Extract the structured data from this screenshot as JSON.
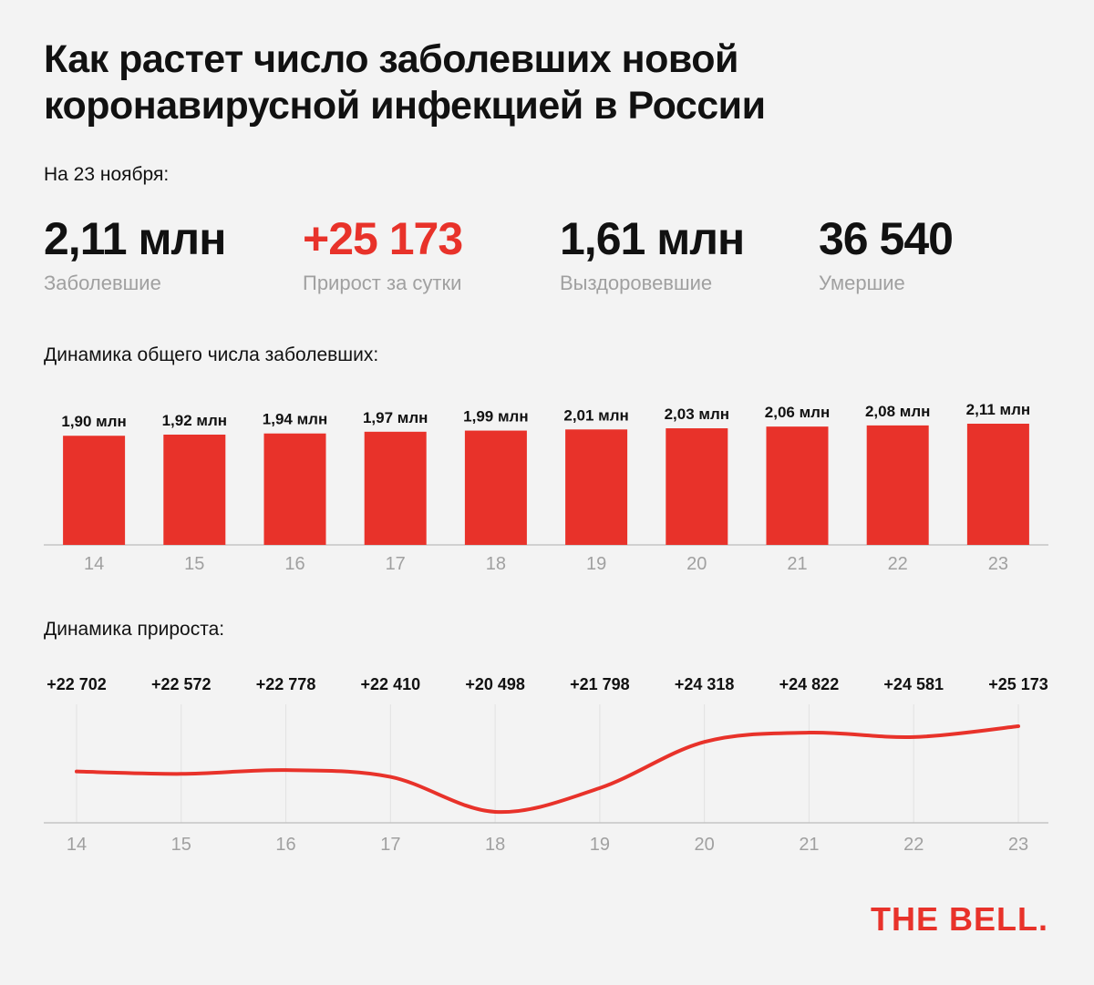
{
  "title": "Как растет число заболевших новой коронавирусной инфекцией в России",
  "as_of": "На 23 ноября:",
  "stats": [
    {
      "value": "2,11 млн",
      "label": "Заболевшие"
    },
    {
      "value": "+25 173",
      "label": "Прирост за сутки"
    },
    {
      "value": "1,61 млн",
      "label": "Выздоровевшие"
    },
    {
      "value": "36 540",
      "label": "Умершие"
    }
  ],
  "colors": {
    "accent": "#e8322a",
    "muted": "#a0a0a0",
    "background": "#f3f3f3"
  },
  "brand": "THE BELL.",
  "chart_data": [
    {
      "type": "bar",
      "title": "Динамика общего числа заболевших:",
      "categories": [
        "14",
        "15",
        "16",
        "17",
        "18",
        "19",
        "20",
        "21",
        "22",
        "23"
      ],
      "values": [
        1.9,
        1.92,
        1.94,
        1.97,
        1.99,
        2.01,
        2.03,
        2.06,
        2.08,
        2.11
      ],
      "value_labels": [
        "1,90 млн",
        "1,92 млн",
        "1,94 млн",
        "1,97 млн",
        "1,99 млн",
        "2,01 млн",
        "2,03 млн",
        "2,06 млн",
        "2,08 млн",
        "2,11 млн"
      ],
      "grid": false
    },
    {
      "type": "line",
      "title": "Динамика прироста:",
      "categories": [
        "14",
        "15",
        "16",
        "17",
        "18",
        "19",
        "20",
        "21",
        "22",
        "23"
      ],
      "values": [
        22702,
        22572,
        22778,
        22410,
        20498,
        21798,
        24318,
        24822,
        24581,
        25173
      ],
      "value_labels": [
        "+22 702",
        "+22 572",
        "+22 778",
        "+22 410",
        "+20 498",
        "+21 798",
        "+24 318",
        "+24 822",
        "+24 581",
        "+25 173"
      ],
      "grid": true
    }
  ]
}
